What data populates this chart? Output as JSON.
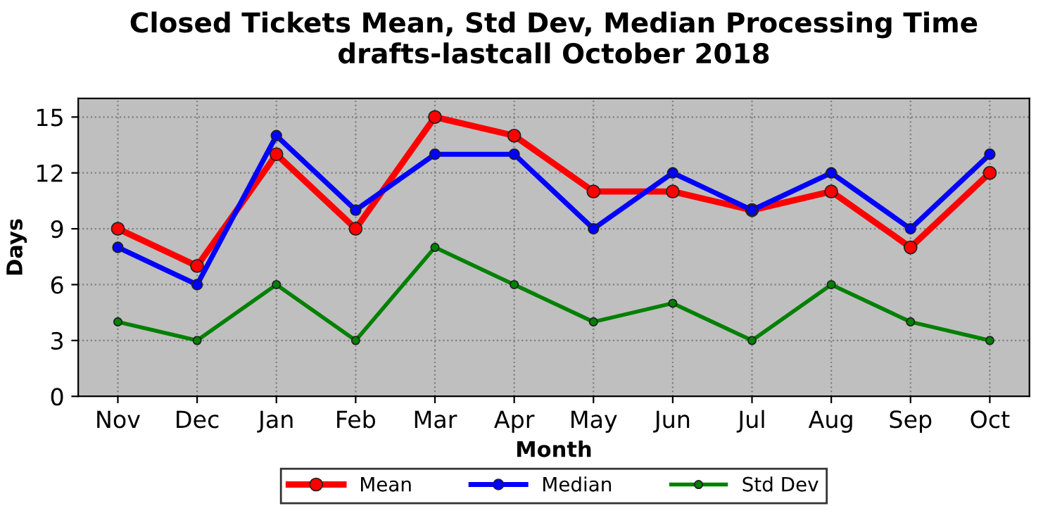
{
  "chart_data": {
    "type": "line",
    "title": "Closed Tickets Mean, Std Dev, Median Processing Time\ndrafts-lastcall October 2018",
    "xlabel": "Month",
    "ylabel": "Days",
    "categories": [
      "Nov",
      "Dec",
      "Jan",
      "Feb",
      "Mar",
      "Apr",
      "May",
      "Jun",
      "Jul",
      "Aug",
      "Sep",
      "Oct"
    ],
    "series": [
      {
        "name": "Mean",
        "color": "#ff0000",
        "values": [
          9,
          7,
          13,
          9,
          15,
          14,
          11,
          11,
          10,
          11,
          8,
          12
        ]
      },
      {
        "name": "Median",
        "color": "#0000ff",
        "values": [
          8,
          6,
          14,
          10,
          13,
          13,
          9,
          12,
          10,
          12,
          9,
          13
        ]
      },
      {
        "name": "Std Dev",
        "color": "#008000",
        "values": [
          4,
          3,
          6,
          3,
          8,
          6,
          4,
          5,
          3,
          6,
          4,
          3
        ]
      }
    ],
    "ylim": [
      0,
      16
    ],
    "yticks": [
      0,
      3,
      6,
      9,
      12,
      15
    ],
    "grid": true,
    "legend": "bottom",
    "marker": "circle",
    "line_style": "solid"
  }
}
